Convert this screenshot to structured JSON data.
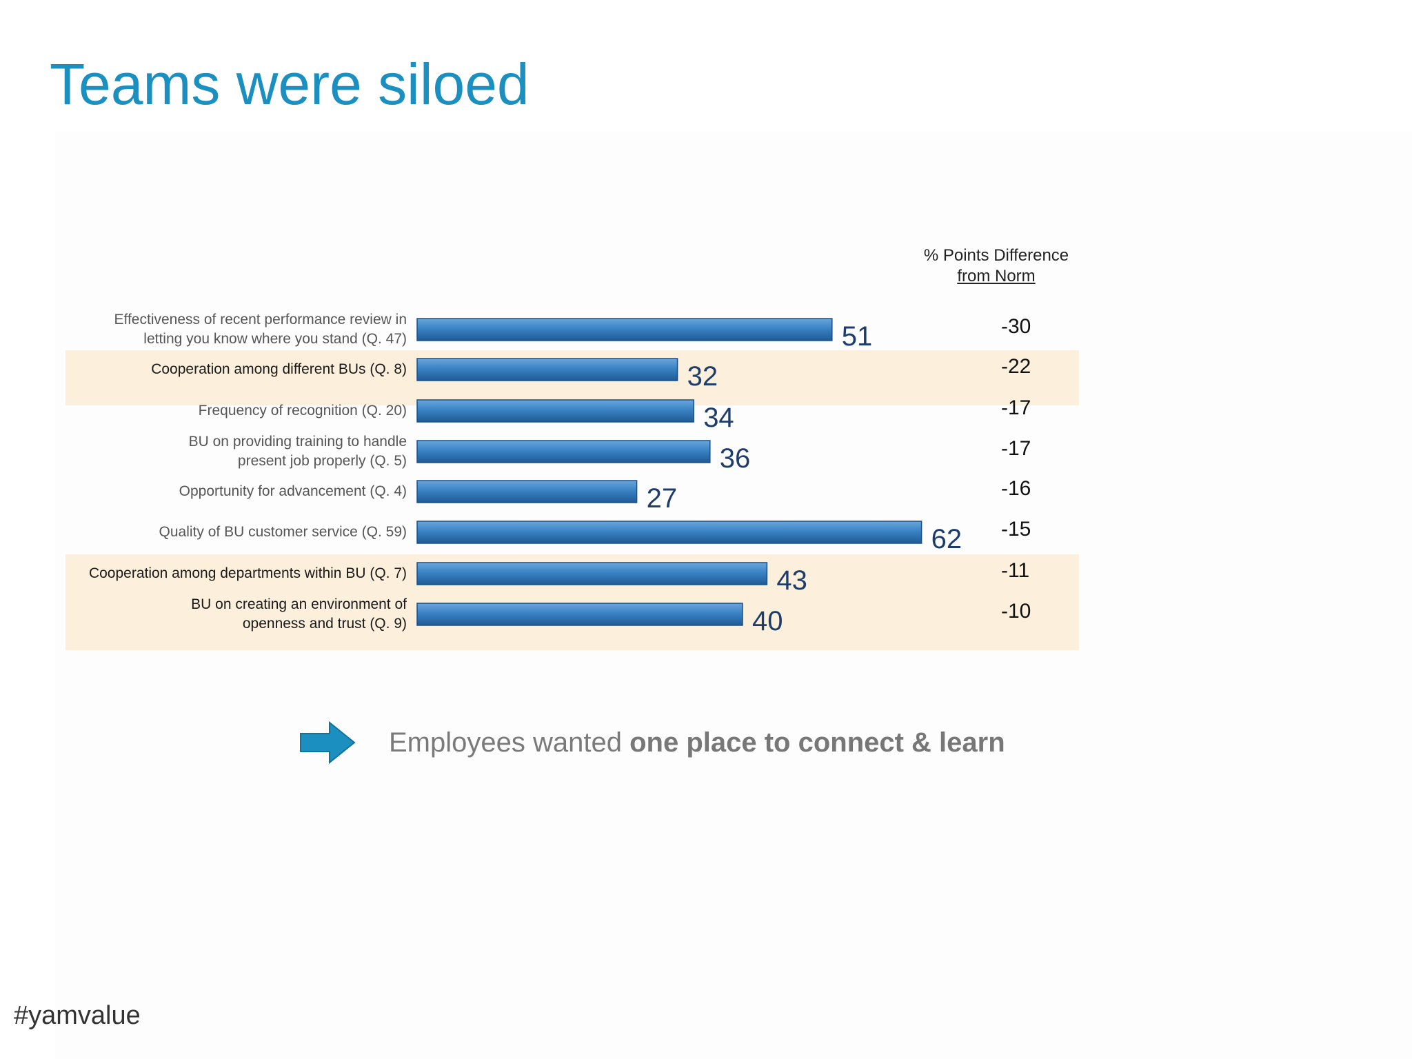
{
  "title": "Teams were siloed",
  "diff_header": {
    "line1": "% Points Difference",
    "line2": "from Norm"
  },
  "chart_data": {
    "type": "bar",
    "orientation": "horizontal",
    "title": "",
    "categories": [
      "Effectiveness of recent performance review in letting you know where you stand (Q. 47)",
      "Cooperation among different BUs (Q. 8)",
      "Frequency of recognition (Q. 20)",
      "BU on providing training to handle present job properly (Q. 5)",
      "Opportunity for advancement (Q. 4)",
      "Quality of BU customer service (Q. 59)",
      "Cooperation among departments within BU (Q. 7)",
      "BU on creating an environment of openness and trust (Q. 9)"
    ],
    "label_lines": [
      [
        "Effectiveness of recent performance review in",
        "letting you know where you stand (Q. 47)"
      ],
      [
        "Cooperation among different BUs (Q. 8)"
      ],
      [
        "Frequency of recognition (Q. 20)"
      ],
      [
        "BU on providing training to handle",
        "present job properly (Q. 5)"
      ],
      [
        "Opportunity for advancement (Q. 4)"
      ],
      [
        "Quality of BU customer service (Q. 59)"
      ],
      [
        "Cooperation among departments within BU (Q. 7)"
      ],
      [
        "BU on creating an environment of",
        "openness and trust (Q. 9)"
      ]
    ],
    "values": [
      51,
      32,
      34,
      36,
      27,
      62,
      43,
      40
    ],
    "diff_from_norm": [
      "-30",
      "-22",
      "-17",
      "-17",
      "-16",
      "-15",
      "-11",
      "-10"
    ],
    "highlighted": [
      false,
      true,
      false,
      false,
      false,
      false,
      true,
      true
    ],
    "bar_color": "#2f76b8",
    "highlight_color": "#fcefdc",
    "xlim": [
      0,
      62
    ],
    "grid": false
  },
  "callout": {
    "prefix": "Employees wanted ",
    "emphasis": "one place to connect & learn",
    "arrow_color": "#1a8fc0",
    "icon": "right-arrow-icon"
  },
  "hashtag": "#yamvalue"
}
